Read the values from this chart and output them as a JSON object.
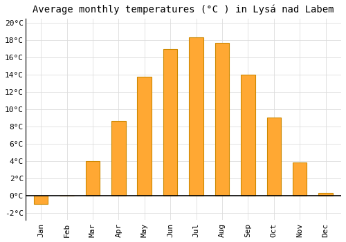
{
  "title": "Average monthly temperatures (°C ) in Lysá nad Labem",
  "months": [
    "Jan",
    "Feb",
    "Mar",
    "Apr",
    "May",
    "Jun",
    "Jul",
    "Aug",
    "Sep",
    "Oct",
    "Nov",
    "Dec"
  ],
  "values": [
    -1.0,
    0.0,
    4.0,
    8.6,
    13.8,
    17.0,
    18.3,
    17.7,
    14.0,
    9.0,
    3.8,
    0.3
  ],
  "bar_color": "#FFA833",
  "bar_edge_color": "#CC8800",
  "background_color": "#ffffff",
  "grid_color": "#dddddd",
  "yticks": [
    -2,
    0,
    2,
    4,
    6,
    8,
    10,
    12,
    14,
    16,
    18,
    20
  ],
  "ytick_labels": [
    "-2°C",
    "0°C",
    "2°C",
    "4°C",
    "6°C",
    "8°C",
    "10°C",
    "12°C",
    "14°C",
    "16°C",
    "18°C",
    "20°C"
  ],
  "ylim": [
    -2.8,
    20.5
  ],
  "zero_line_color": "#000000",
  "title_fontsize": 10,
  "tick_fontsize": 8,
  "font_family": "monospace",
  "bar_width": 0.55
}
